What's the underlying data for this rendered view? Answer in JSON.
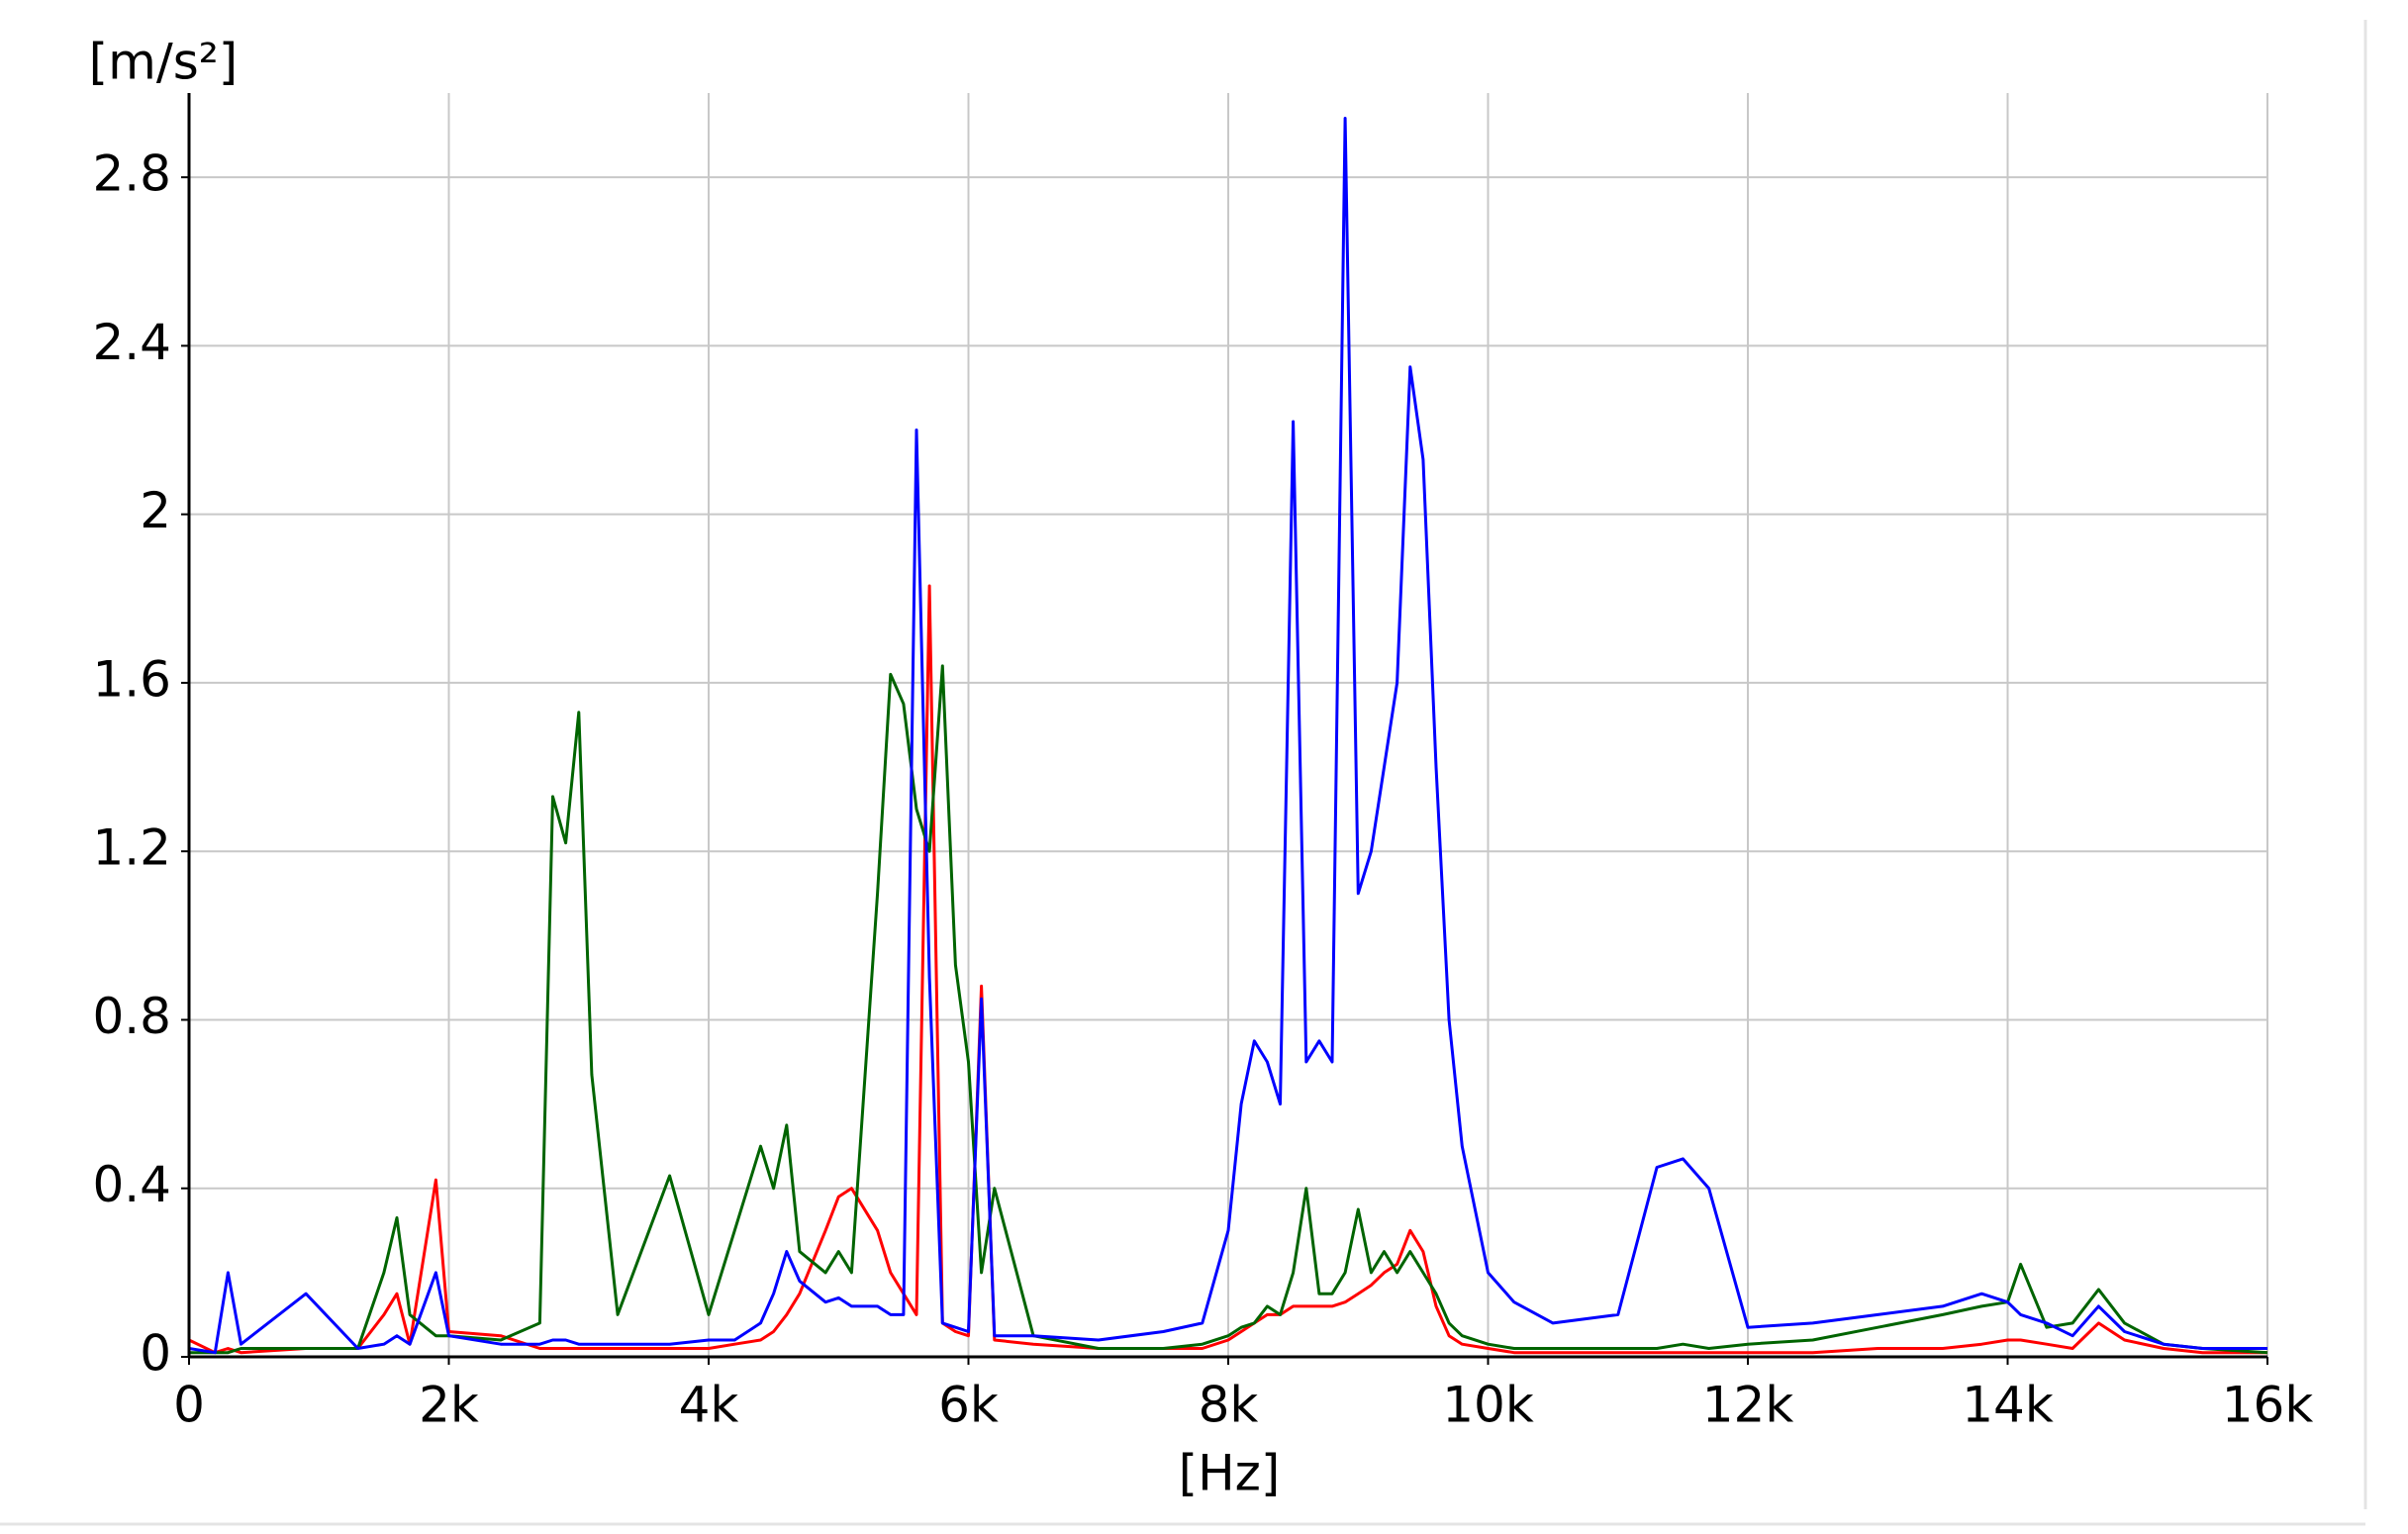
{
  "chart_data": {
    "type": "line",
    "ylabel": "[m/s²]",
    "xlabel": "[Hz]",
    "xlim": [
      0,
      16000
    ],
    "ylim": [
      0,
      3
    ],
    "xticks": [
      0,
      {
        "value": 2000,
        "label": "2k"
      },
      {
        "value": 4000,
        "label": "4k"
      },
      {
        "value": 6000,
        "label": "6k"
      },
      {
        "value": 8000,
        "label": "8k"
      },
      {
        "value": 10000,
        "label": "10k"
      },
      {
        "value": 12000,
        "label": "12k"
      },
      {
        "value": 14000,
        "label": "14k"
      },
      {
        "value": 16000,
        "label": "16k"
      }
    ],
    "yticks": [
      0,
      0.4,
      0.8,
      1.2,
      1.6,
      2,
      2.4,
      2.8
    ],
    "grid": true,
    "x": [
      0,
      200,
      300,
      400,
      900,
      1300,
      1500,
      1600,
      1700,
      1900,
      2000,
      2400,
      2700,
      2800,
      2900,
      3000,
      3100,
      3300,
      3700,
      4000,
      4200,
      4400,
      4500,
      4600,
      4700,
      4900,
      5000,
      5100,
      5300,
      5400,
      5500,
      5600,
      5700,
      5800,
      5900,
      6000,
      6100,
      6200,
      6500,
      7000,
      7500,
      7800,
      8000,
      8100,
      8200,
      8300,
      8400,
      8500,
      8600,
      8700,
      8800,
      8900,
      9000,
      9100,
      9200,
      9300,
      9400,
      9500,
      9600,
      9700,
      9800,
      10000,
      10200,
      10500,
      11000,
      11300,
      11500,
      11700,
      12000,
      12500,
      13000,
      13500,
      13800,
      14000,
      14100,
      14300,
      14500,
      14700,
      14900,
      15200,
      15500,
      16000
    ],
    "series": [
      {
        "color": "#ff0000",
        "values": [
          0.04,
          0.01,
          0.02,
          0.01,
          0.02,
          0.02,
          0.1,
          0.15,
          0.03,
          0.42,
          0.06,
          0.05,
          0.02,
          0.02,
          0.02,
          0.02,
          0.02,
          0.02,
          0.02,
          0.02,
          0.03,
          0.04,
          0.06,
          0.1,
          0.15,
          0.3,
          0.38,
          0.4,
          0.3,
          0.2,
          0.15,
          0.1,
          1.83,
          0.08,
          0.06,
          0.05,
          0.88,
          0.04,
          0.03,
          0.02,
          0.02,
          0.02,
          0.04,
          0.06,
          0.08,
          0.1,
          0.1,
          0.12,
          0.12,
          0.12,
          0.12,
          0.13,
          0.15,
          0.17,
          0.2,
          0.22,
          0.3,
          0.25,
          0.12,
          0.05,
          0.03,
          0.02,
          0.01,
          0.01,
          0.01,
          0.01,
          0.01,
          0.01,
          0.01,
          0.01,
          0.02,
          0.02,
          0.03,
          0.04,
          0.04,
          0.03,
          0.02,
          0.08,
          0.04,
          0.02,
          0.01,
          0.01
        ]
      },
      {
        "color": "#006400",
        "values": [
          0.01,
          0.01,
          0.01,
          0.02,
          0.02,
          0.02,
          0.2,
          0.33,
          0.1,
          0.05,
          0.05,
          0.04,
          0.08,
          1.33,
          1.22,
          1.53,
          0.67,
          0.1,
          0.43,
          0.1,
          0.3,
          0.5,
          0.4,
          0.55,
          0.25,
          0.2,
          0.25,
          0.2,
          1.1,
          1.62,
          1.55,
          1.3,
          1.2,
          1.64,
          0.93,
          0.7,
          0.2,
          0.4,
          0.05,
          0.02,
          0.02,
          0.03,
          0.05,
          0.07,
          0.08,
          0.12,
          0.1,
          0.2,
          0.4,
          0.15,
          0.15,
          0.2,
          0.35,
          0.2,
          0.25,
          0.2,
          0.25,
          0.2,
          0.15,
          0.08,
          0.05,
          0.03,
          0.02,
          0.02,
          0.02,
          0.02,
          0.03,
          0.02,
          0.03,
          0.04,
          0.07,
          0.1,
          0.12,
          0.13,
          0.22,
          0.07,
          0.08,
          0.16,
          0.08,
          0.03,
          0.02,
          0.01
        ]
      },
      {
        "color": "#0000ff",
        "values": [
          0.02,
          0.01,
          0.2,
          0.03,
          0.15,
          0.02,
          0.03,
          0.05,
          0.03,
          0.2,
          0.05,
          0.03,
          0.03,
          0.04,
          0.04,
          0.03,
          0.03,
          0.03,
          0.03,
          0.04,
          0.04,
          0.08,
          0.15,
          0.25,
          0.18,
          0.13,
          0.14,
          0.12,
          0.12,
          0.1,
          0.1,
          2.2,
          0.9,
          0.08,
          0.07,
          0.06,
          0.85,
          0.05,
          0.05,
          0.04,
          0.06,
          0.08,
          0.3,
          0.6,
          0.75,
          0.7,
          0.6,
          2.22,
          0.7,
          0.75,
          0.7,
          2.94,
          1.1,
          1.2,
          1.4,
          1.6,
          2.35,
          2.13,
          1.4,
          0.8,
          0.5,
          0.2,
          0.13,
          0.08,
          0.1,
          0.45,
          0.47,
          0.4,
          0.07,
          0.08,
          0.1,
          0.12,
          0.15,
          0.13,
          0.1,
          0.08,
          0.05,
          0.12,
          0.06,
          0.03,
          0.02,
          0.02
        ]
      }
    ]
  }
}
